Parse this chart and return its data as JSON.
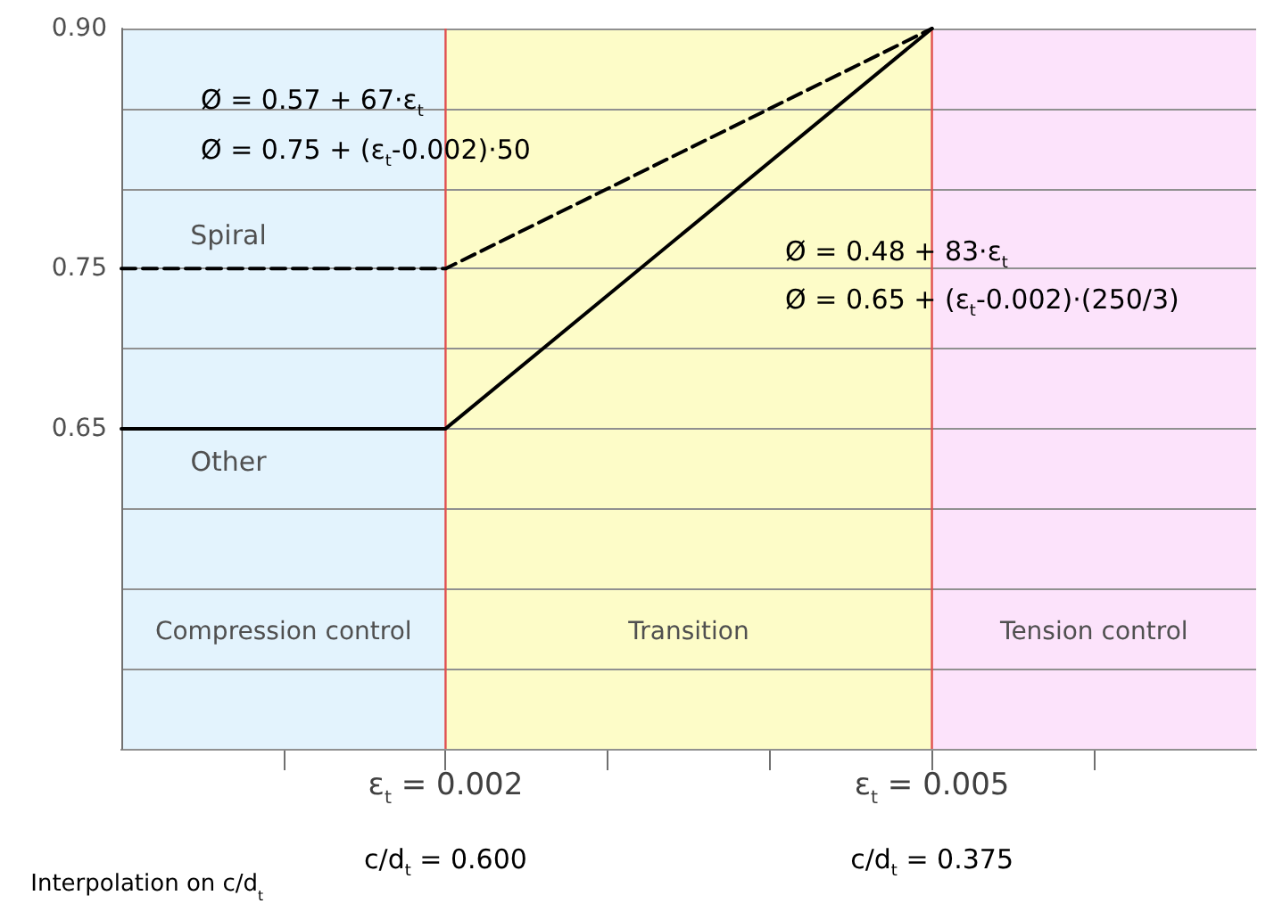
{
  "chart_data": {
    "type": "line",
    "xlim": [
      0,
      0.007
    ],
    "ylim": [
      0.45,
      0.9
    ],
    "xticks": [
      {
        "value": 0.001,
        "label": null
      },
      {
        "value": 0.002,
        "label": "ε$_{t}$ = 0.002"
      },
      {
        "value": 0.003,
        "label": null
      },
      {
        "value": 0.004,
        "label": null
      },
      {
        "value": 0.005,
        "label": "ε$_{t}$ = 0.005"
      },
      {
        "value": 0.006,
        "label": null
      }
    ],
    "yticks": [
      {
        "value": 0.5,
        "label": null
      },
      {
        "value": 0.55,
        "label": null
      },
      {
        "value": 0.6,
        "label": null
      },
      0.65,
      {
        "value": 0.7,
        "label": null
      },
      0.75,
      {
        "value": 0.8,
        "label": null
      },
      {
        "value": 0.85,
        "label": null
      },
      {
        "value": 0.9,
        "label": "0.90"
      }
    ],
    "grid": "y",
    "legend": false,
    "marker": "none",
    "series": [
      {
        "name": "Spiral",
        "color": "#000000",
        "line_style": "dashed",
        "x": [
          0,
          0.002,
          0.005
        ],
        "values": [
          0.75,
          0.75,
          0.9
        ]
      },
      {
        "name": "Other",
        "color": "#000000",
        "line_style": "solid",
        "x": [
          0,
          0.002,
          0.005
        ],
        "values": [
          0.65,
          0.65,
          0.9
        ]
      }
    ],
    "bands": [
      {
        "axis": "x",
        "from": 0,
        "to": 0.002,
        "label": "Compression control",
        "color": "#e3f3fd"
      },
      {
        "axis": "x",
        "from": 0.002,
        "to": 0.005,
        "label": "Transition",
        "color": "#fdfcc8"
      },
      {
        "axis": "x",
        "from": 0.005,
        "to": 0.007,
        "label": "Tension control",
        "color": "#fce3fb"
      }
    ],
    "ref_lines": [
      {
        "axis": "x",
        "value": 0.002,
        "color": "#e05050"
      },
      {
        "axis": "x",
        "value": 0.005,
        "color": "#e05050"
      }
    ],
    "annotations": [
      "Ø = 0.57 + 67·ε$_{t}$",
      "Ø = 0.75 + (ε$_{t}$-0.002)·50",
      "Ø = 0.48 + 83·ε$_{t}$",
      "Ø = 0.65 + (ε$_{t}$-0.002)·(250/3)",
      "c/d$_{t}$ = 0.600",
      "c/d$_{t}$ = 0.375",
      "Interpolation on c/d$_{t}$"
    ]
  }
}
